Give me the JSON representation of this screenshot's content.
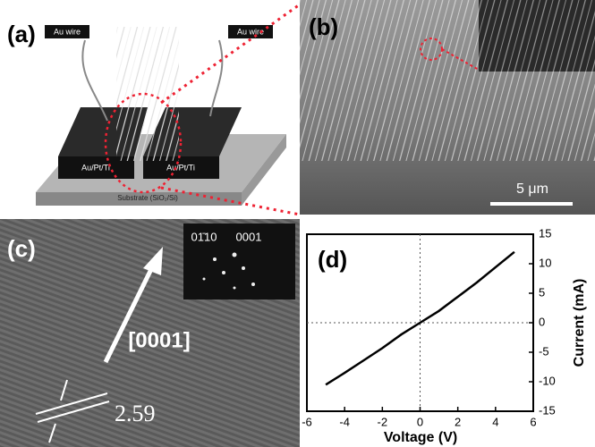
{
  "panels": {
    "a": {
      "label": "(a)",
      "wire_left": "Au wire",
      "wire_right": "Au wire",
      "electrode_left": "Au/Pt/Ti",
      "electrode_right": "Au/Pt/Ti",
      "substrate": "Substrate (SiO₂/Si)"
    },
    "b": {
      "label": "(b)",
      "scale": "5 μm"
    },
    "c": {
      "label": "(c)",
      "diffraction_left": "01̄10",
      "diffraction_right": "0001",
      "direction": "[0001]",
      "spacing": "2.59"
    }
  },
  "chart_data": {
    "type": "line",
    "label": "(d)",
    "x_label": "Voltage (V)",
    "y_label": "Current (mA)",
    "x": [
      -5,
      -4,
      -3,
      -2,
      -1,
      0,
      1,
      2,
      3,
      4,
      5
    ],
    "values": [
      -10.5,
      -8.5,
      -6.4,
      -4.3,
      -2.0,
      0,
      2.0,
      4.4,
      6.8,
      9.4,
      12
    ],
    "color": "#000000",
    "xlim": [
      -6,
      6
    ],
    "xticks": [
      -6,
      -4,
      -2,
      0,
      2,
      4,
      6
    ],
    "ylim": [
      -15,
      15
    ],
    "yticks": [
      -15,
      -10,
      -5,
      0,
      5,
      10,
      15
    ]
  }
}
